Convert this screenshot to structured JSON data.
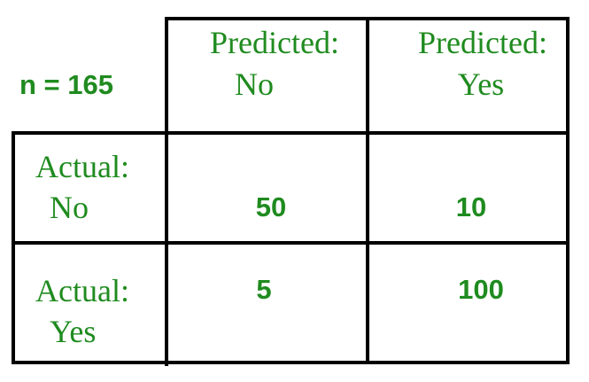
{
  "matrix": {
    "total_label": "n = 165",
    "col_headers": [
      {
        "line1": "Predicted:",
        "line2": "No"
      },
      {
        "line1": "Predicted:",
        "line2": "Yes"
      }
    ],
    "row_headers": [
      {
        "line1": "Actual:",
        "line2": "No"
      },
      {
        "line1": "Actual:",
        "line2": "Yes"
      }
    ],
    "cells": [
      [
        "50",
        "10"
      ],
      [
        "5",
        "100"
      ]
    ],
    "text_color": "#1f8b1f",
    "line_color": "#000000"
  }
}
